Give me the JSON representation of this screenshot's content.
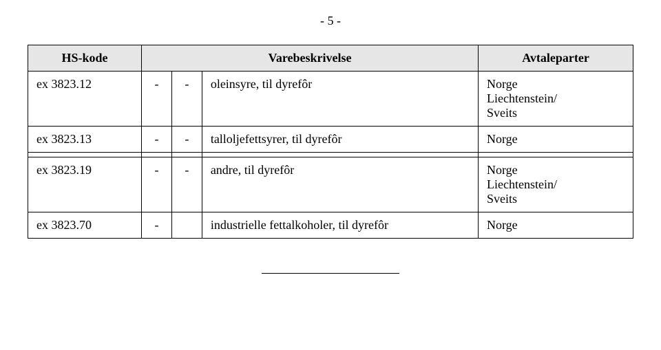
{
  "page_number": "- 5 -",
  "headers": {
    "hs": "HS-kode",
    "desc": "Varebeskrivelse",
    "party": "Avtaleparter"
  },
  "rows": [
    {
      "hs": "ex 3823.12",
      "d1": "-",
      "d2": "-",
      "desc": "oleinsyre, til dyrefôr",
      "party": "Norge\nLiechtenstein/\nSveits"
    },
    {
      "hs": "ex 3823.13",
      "d1": "-",
      "d2": "-",
      "desc": "talloljefettsyrer, til dyrefôr",
      "party": "Norge"
    },
    {
      "spacer": true
    },
    {
      "hs": "ex 3823.19",
      "d1": "-",
      "d2": "-",
      "desc": "andre, til dyrefôr",
      "party": "Norge\nLiechtenstein/\nSveits"
    },
    {
      "hs": "ex 3823.70",
      "d1": "-",
      "d2": "",
      "desc": "industrielle fettalkoholer, til dyrefôr",
      "party": "Norge"
    }
  ]
}
